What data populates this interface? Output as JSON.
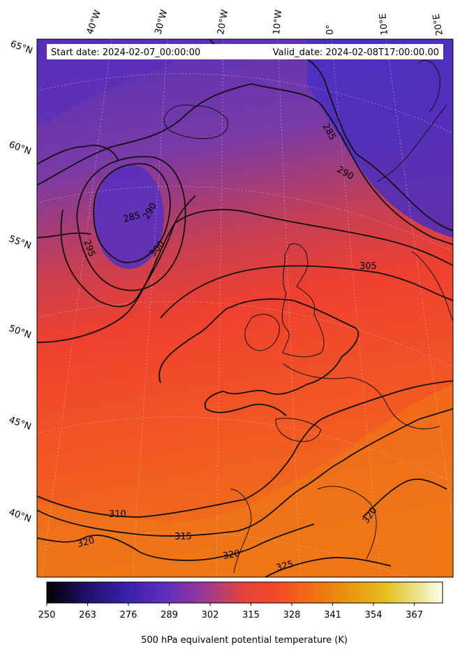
{
  "header": {
    "start_date": "Start date: 2024-02-07_00:00:00",
    "valid_date": "Valid_date: 2024-02-08T17:00:00.00"
  },
  "map": {
    "longitude_labels": [
      "40°W",
      "30°W",
      "20°W",
      "10°W",
      "0°",
      "10°E",
      "20°E"
    ],
    "latitude_labels": [
      "65°N",
      "60°N",
      "55°N",
      "50°N",
      "45°N",
      "40°N"
    ],
    "contour_levels": [
      285,
      290,
      295,
      300,
      305,
      310,
      315,
      320,
      325
    ],
    "contour_labels": [
      "285",
      "285",
      "290",
      "290",
      "295",
      "300",
      "305",
      "310",
      "315",
      "320",
      "320",
      "320",
      "325"
    ],
    "field_colors": {
      "north": "#4a2fbf",
      "mid_north": "#8a3aa0",
      "center": "#e8402f",
      "south": "#ef6a1a"
    }
  },
  "colorbar": {
    "title": "500 hPa equivalent potential temperature (K)",
    "ticks": [
      "250",
      "263",
      "276",
      "289",
      "302",
      "315",
      "328",
      "341",
      "354",
      "367"
    ],
    "range": [
      250,
      376
    ],
    "colormap": [
      "#000000",
      "#1c1060",
      "#3a20a8",
      "#5f2ec0",
      "#9a3a93",
      "#d9443e",
      "#f24a2a",
      "#ef6a15",
      "#e99310",
      "#e4c020",
      "#eee8a0",
      "#ffffff"
    ]
  }
}
